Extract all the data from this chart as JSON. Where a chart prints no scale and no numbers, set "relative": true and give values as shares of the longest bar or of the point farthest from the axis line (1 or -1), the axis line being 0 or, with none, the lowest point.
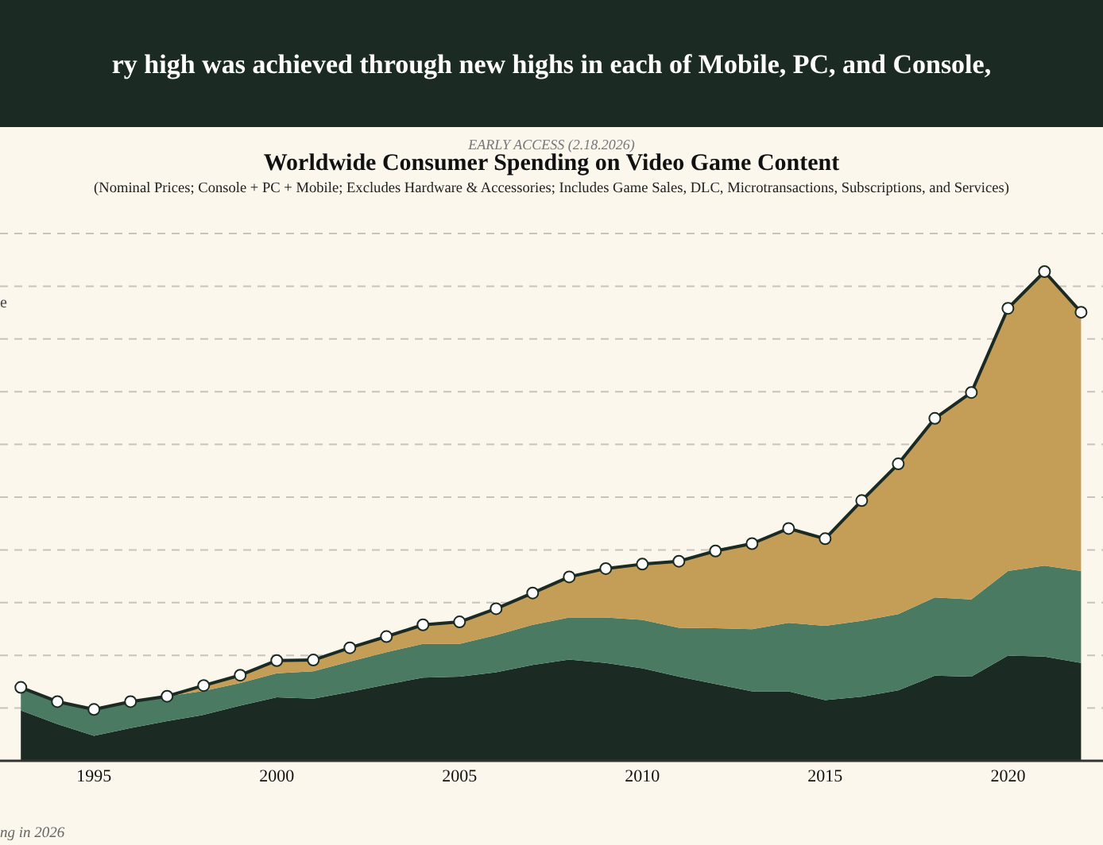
{
  "chart_data": {
    "type": "area",
    "stacked": true,
    "relative": true,
    "title": "Worldwide Consumer Spending on Video Game Content",
    "subtitle": "(Nominal Prices; Console + PC + Mobile; Excludes Hardware & Accessories; Includes Game Sales, DLC, Microtransactions, Subscriptions, and Services)",
    "annotations": [
      "ry high was achieved through new highs in each of Mobile, PC, and Console,",
      "EARLY ACCESS (2.18.2026)",
      "ng in 2026",
      "e"
    ],
    "x": [
      1993,
      1994,
      1995,
      1996,
      1997,
      1998,
      1999,
      2000,
      2001,
      2002,
      2003,
      2004,
      2005,
      2006,
      2007,
      2008,
      2009,
      2010,
      2011,
      2012,
      2013,
      2014,
      2015,
      2016,
      2017,
      2018,
      2019,
      2020,
      2021,
      2022
    ],
    "xlim": [
      1992.43,
      2022.6
    ],
    "xticks": [
      1995,
      2000,
      2005,
      2010,
      2015,
      2020
    ],
    "grid": "y",
    "series": [
      {
        "color": "#1b2a22",
        "values": [
          0.103,
          0.075,
          0.051,
          0.067,
          0.081,
          0.094,
          0.113,
          0.13,
          0.127,
          0.141,
          0.156,
          0.17,
          0.172,
          0.181,
          0.196,
          0.207,
          0.2,
          0.189,
          0.172,
          0.157,
          0.142,
          0.142,
          0.124,
          0.131,
          0.144,
          0.174,
          0.172,
          0.215,
          0.213,
          0.2
        ]
      },
      {
        "color": "#4a7a62",
        "values": [
          0.047,
          0.046,
          0.054,
          0.054,
          0.051,
          0.049,
          0.046,
          0.049,
          0.056,
          0.062,
          0.066,
          0.069,
          0.067,
          0.076,
          0.082,
          0.086,
          0.093,
          0.099,
          0.1,
          0.114,
          0.127,
          0.14,
          0.152,
          0.155,
          0.156,
          0.16,
          0.158,
          0.173,
          0.186,
          0.188
        ]
      },
      {
        "color": "#c49e57",
        "marker": "circle",
        "line_style": "solid",
        "values": [
          0,
          0,
          0,
          0,
          0,
          0.011,
          0.016,
          0.026,
          0.023,
          0.028,
          0.032,
          0.039,
          0.045,
          0.054,
          0.065,
          0.083,
          0.1,
          0.114,
          0.136,
          0.158,
          0.175,
          0.193,
          0.178,
          0.246,
          0.307,
          0.366,
          0.423,
          0.537,
          0.601,
          0.529
        ]
      }
    ]
  }
}
